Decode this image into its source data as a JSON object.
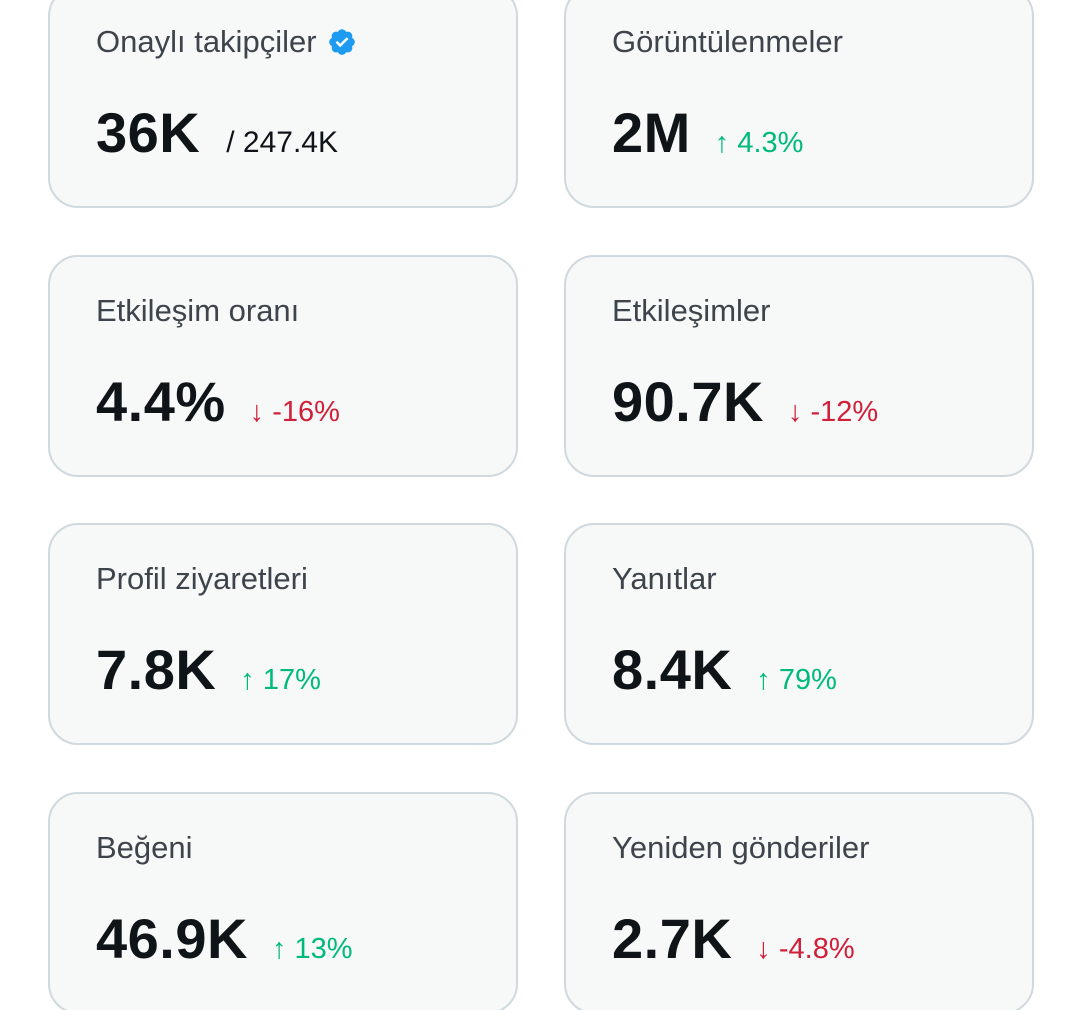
{
  "colors": {
    "card_background": "#f7f8f8",
    "card_border": "#cfd9de",
    "label": "#3d444b",
    "value": "#0f1419",
    "positive": "#00ba7c",
    "negative": "#d11f3a",
    "verified_badge": "#1d9bf0"
  },
  "cards": [
    {
      "label": "Onaylı takipçiler",
      "value": "36K",
      "sub": "/ 247.4K",
      "icon": "verified-badge-icon"
    },
    {
      "label": "Görüntülenmeler",
      "value": "2M",
      "delta": "↑ 4.3%",
      "trend": "up"
    },
    {
      "label": "Etkileşim oranı",
      "value": "4.4%",
      "delta": "↓ -16%",
      "trend": "down"
    },
    {
      "label": "Etkileşimler",
      "value": "90.7K",
      "delta": "↓ -12%",
      "trend": "down"
    },
    {
      "label": "Profil ziyaretleri",
      "value": "7.8K",
      "delta": "↑ 17%",
      "trend": "up"
    },
    {
      "label": "Yanıtlar",
      "value": "8.4K",
      "delta": "↑ 79%",
      "trend": "up"
    },
    {
      "label": "Beğeni",
      "value": "46.9K",
      "delta": "↑ 13%",
      "trend": "up"
    },
    {
      "label": "Yeniden gönderiler",
      "value": "2.7K",
      "delta": "↓ -4.8%",
      "trend": "down"
    }
  ]
}
